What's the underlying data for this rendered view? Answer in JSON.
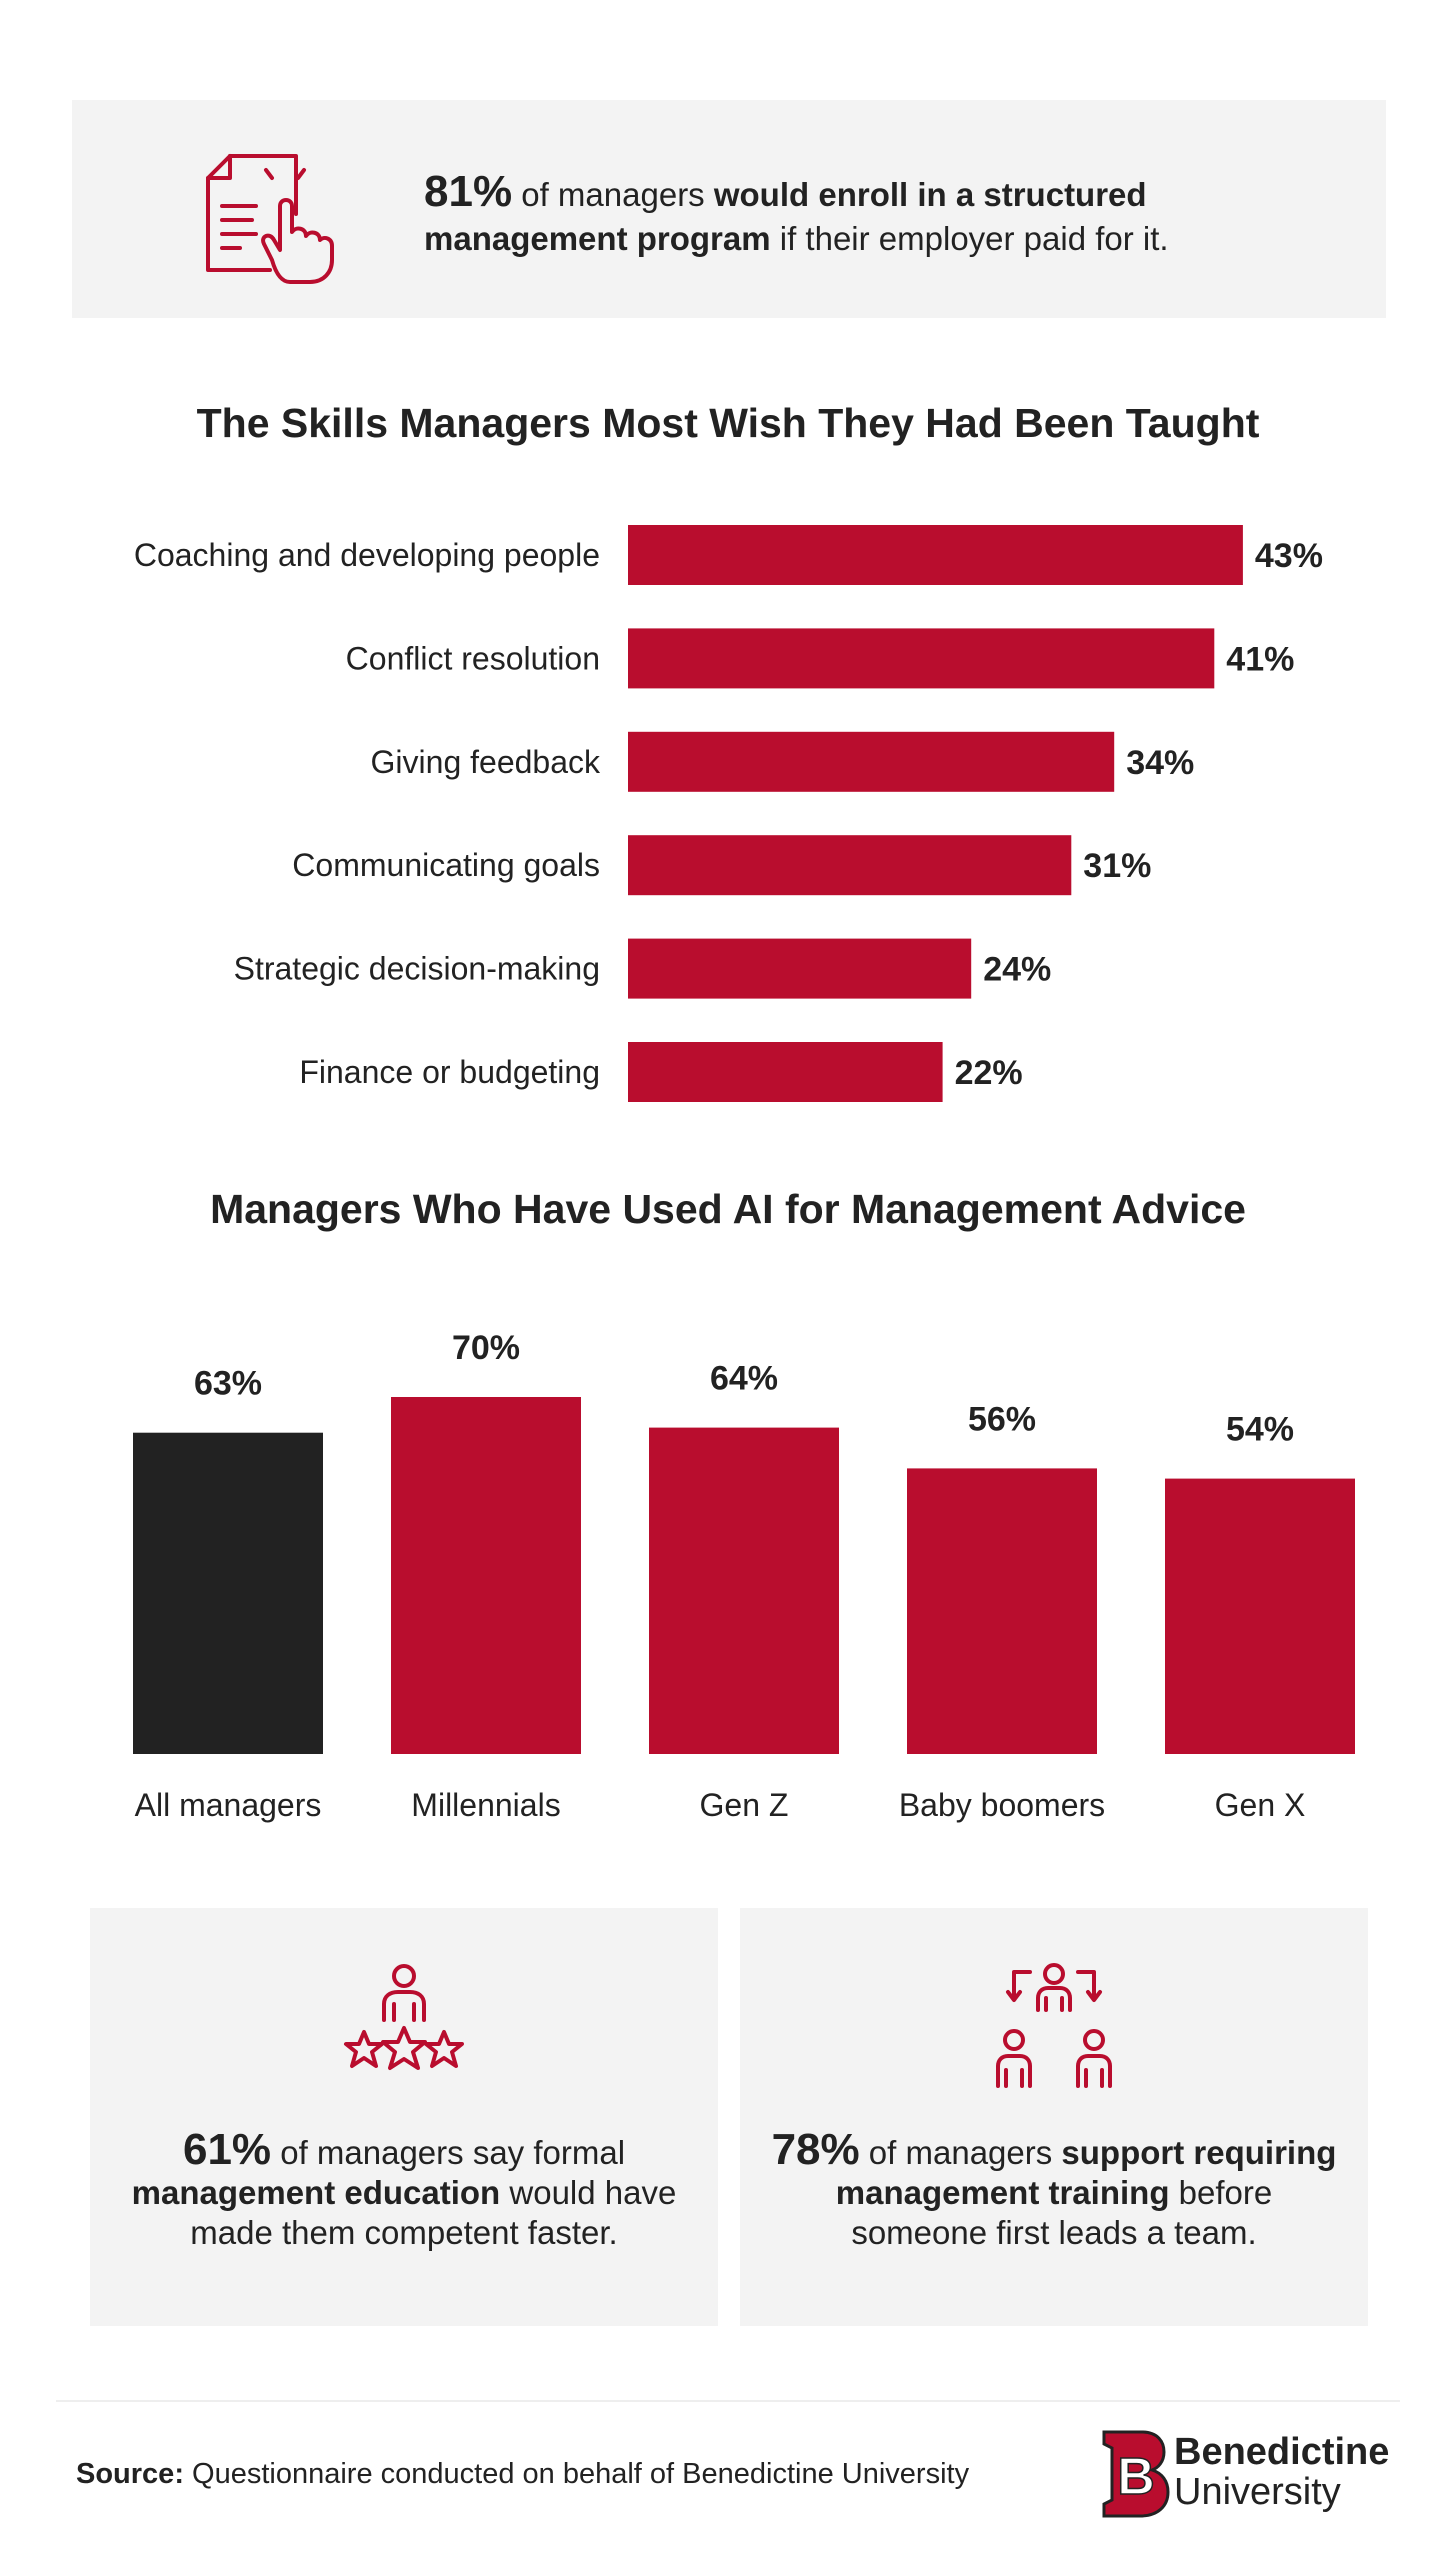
{
  "colors": {
    "accent": "#b90d2e",
    "dark_bar": "#222222",
    "box_bg": "#f3f3f3",
    "text": "#222222"
  },
  "top_stat": {
    "icon": "document-hand-icon",
    "number": "81%",
    "text_1": " of managers ",
    "bold_1": "would enroll in a structured management program",
    "text_2": " if their employer paid for it."
  },
  "chart_data": [
    {
      "type": "bar",
      "orientation": "horizontal",
      "title": "The Skills Managers Most Wish They Had Been Taught",
      "categories": [
        "Coaching and developing people",
        "Conflict resolution",
        "Giving feedback",
        "Communicating goals",
        "Strategic decision-making",
        "Finance or budgeting"
      ],
      "values": [
        43,
        41,
        34,
        31,
        24,
        22
      ],
      "labels": [
        "43%",
        "41%",
        "34%",
        "31%",
        "24%",
        "22%"
      ],
      "unit": "%",
      "color": "#b90d2e"
    },
    {
      "type": "bar",
      "orientation": "vertical",
      "title": "Managers Who Have Used AI for Management Advice",
      "categories": [
        "All managers",
        "Millennials",
        "Gen Z",
        "Baby boomers",
        "Gen X"
      ],
      "values": [
        63,
        70,
        64,
        56,
        54
      ],
      "labels": [
        "63%",
        "70%",
        "64%",
        "56%",
        "54%"
      ],
      "unit": "%",
      "colors": [
        "#222222",
        "#b90d2e",
        "#b90d2e",
        "#b90d2e",
        "#b90d2e"
      ]
    }
  ],
  "box_left": {
    "icon": "person-stars-icon",
    "number": "61%",
    "text_1": " of managers say formal ",
    "bold_1": "management education",
    "text_2": " would have made them competent faster."
  },
  "box_right": {
    "icon": "team-arrows-icon",
    "number": "78%",
    "text_1": " of managers ",
    "bold_1": "support requiring management training",
    "text_2": " before someone first leads a team."
  },
  "footer": {
    "source_label": "Source:",
    "source_text": " Questionnaire conducted on behalf of Benedictine University",
    "logo_letter": "B",
    "logo_line1": "Benedictine",
    "logo_line2": "University"
  }
}
